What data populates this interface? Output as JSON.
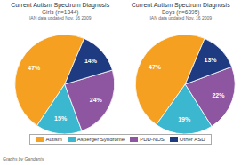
{
  "chart_data": [
    {
      "type": "pie",
      "title": "Current Autism Spectrum Diagnosis",
      "subtitle": "Girls (n=1344)",
      "annotations": [
        "IAN data updated Nov. 16 2009"
      ],
      "categories": [
        "Autism",
        "Asperger Syndrome",
        "PDD-NOS",
        "Other ASD"
      ],
      "values": [
        47,
        15,
        24,
        14
      ],
      "value_labels": [
        "47%",
        "15%",
        "24%",
        "14%"
      ],
      "colors": [
        "#F5A020",
        "#3BB8D0",
        "#8E55A0",
        "#1E3A80"
      ],
      "data_labels": true,
      "legend": "bottom"
    },
    {
      "type": "pie",
      "title": "Current Autism Spectrum Diagnosis",
      "subtitle": "Boys (n=6395)",
      "annotations": [
        "IAN data updated Nov. 16 2009"
      ],
      "categories": [
        "Autism",
        "Asperger Syndrome",
        "PDD-NOS",
        "Other ASD"
      ],
      "values": [
        47,
        19,
        22,
        13
      ],
      "value_labels": [
        "47%",
        "19%",
        "22%",
        "13%"
      ],
      "colors": [
        "#F5A020",
        "#3BB8D0",
        "#8E55A0",
        "#1E3A80"
      ],
      "data_labels": true,
      "legend": "bottom"
    }
  ],
  "annotations": [
    "Graphs by Gandants"
  ]
}
